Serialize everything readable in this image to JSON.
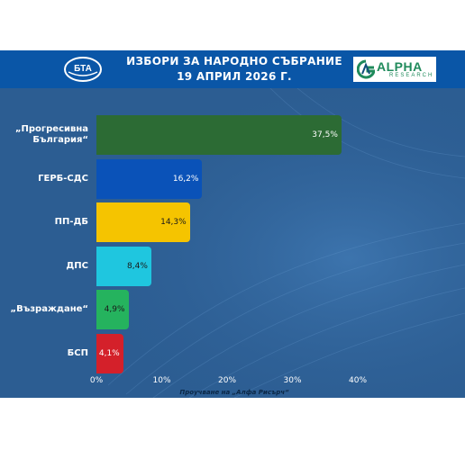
{
  "header": {
    "title_line1": "ИЗБОРИ ЗА НАРОДНО СЪБРАНИЕ",
    "title_line2": "19 АПРИЛ 2026 Г.",
    "left_logo_text": "БТА",
    "right_logo_text": "ALPHA",
    "right_logo_sub": "RESEARCH"
  },
  "chart_data": {
    "type": "bar",
    "orientation": "horizontal",
    "categories": [
      "„Прогресивна България“",
      "ГЕРБ-СДС",
      "ПП-ДБ",
      "ДПС",
      "„Възраждане“",
      "БСП"
    ],
    "category_lines": [
      [
        "„Прогресивна",
        "България“"
      ],
      [
        "ГЕРБ-СДС"
      ],
      [
        "ПП-ДБ"
      ],
      [
        "ДПС"
      ],
      [
        "„Възраждане“"
      ],
      [
        "БСП"
      ]
    ],
    "values": [
      37.5,
      16.2,
      14.3,
      8.4,
      4.9,
      4.1
    ],
    "value_labels": [
      "37,5%",
      "16,2%",
      "14,3%",
      "8,4%",
      "4,9%",
      "4,1%"
    ],
    "xlim": [
      0,
      40
    ],
    "x_ticks": [
      "0%",
      "10%",
      "20%",
      "30%",
      "40%"
    ],
    "grid": false,
    "legend": "none",
    "source_note": "Проучване на „Алфа Рисърч“"
  },
  "colors": {
    "header_bg": "#0a56a7",
    "panel_bg": "#2c5d92",
    "bars": [
      "#2c6b34",
      "#0a52b8",
      "#f5c400",
      "#1fc6df",
      "#25b35e",
      "#d4202a"
    ],
    "value_text": [
      "#ffffff",
      "#ffffff",
      "#1a1a1a",
      "#1a1a1a",
      "#1a1a1a",
      "#ffffff"
    ]
  }
}
